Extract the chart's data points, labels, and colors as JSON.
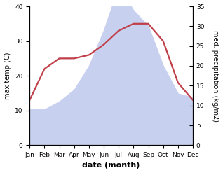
{
  "months": [
    "Jan",
    "Feb",
    "Mar",
    "Apr",
    "May",
    "Jun",
    "Jul",
    "Aug",
    "Sep",
    "Oct",
    "Nov",
    "Dec"
  ],
  "temperature": [
    13,
    22,
    25,
    25,
    26,
    29,
    33,
    35,
    35,
    30,
    18,
    13
  ],
  "precipitation": [
    9,
    9,
    11,
    14,
    20,
    29,
    40,
    34,
    30,
    20,
    13,
    12
  ],
  "temp_color": "#c0404a",
  "precip_fill_color": "#c8d0f0",
  "left_ylabel": "max temp (C)",
  "right_ylabel": "med. precipitation (kg/m2)",
  "xlabel": "date (month)",
  "ylim_left": [
    0,
    40
  ],
  "ylim_right": [
    0,
    35
  ],
  "left_yticks": [
    0,
    10,
    20,
    30,
    40
  ],
  "right_yticks": [
    0,
    5,
    10,
    15,
    20,
    25,
    30,
    35
  ],
  "background_color": "#ffffff",
  "temp_linewidth": 1.6,
  "label_fontsize": 7,
  "tick_fontsize": 6.5,
  "xlabel_fontsize": 8
}
